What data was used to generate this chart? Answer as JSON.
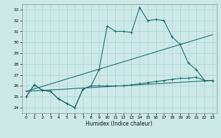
{
  "xlabel": "Humidex (Indice chaleur)",
  "xlim": [
    -0.5,
    23.5
  ],
  "ylim": [
    23.5,
    33.5
  ],
  "yticks": [
    24,
    25,
    26,
    27,
    28,
    29,
    30,
    31,
    32,
    33
  ],
  "xticks": [
    0,
    1,
    2,
    3,
    4,
    5,
    6,
    7,
    8,
    9,
    10,
    11,
    12,
    13,
    14,
    15,
    16,
    17,
    18,
    19,
    20,
    21,
    22,
    23
  ],
  "bg_color": "#cce9e8",
  "grid_color": "#aad4d3",
  "line_color": "#1a6b6b",
  "series1_x": [
    0,
    1,
    2,
    3,
    4,
    5,
    6,
    7,
    8,
    9,
    10,
    11,
    12,
    13,
    14,
    15,
    16,
    17,
    18,
    19,
    20,
    21,
    22,
    23
  ],
  "series1_y": [
    25.0,
    26.1,
    25.6,
    25.5,
    24.8,
    24.4,
    24.0,
    25.7,
    26.0,
    27.5,
    31.5,
    31.0,
    31.0,
    30.9,
    33.2,
    32.0,
    32.1,
    32.0,
    30.5,
    29.8,
    28.1,
    27.5,
    26.5,
    26.5
  ],
  "series2_x": [
    0,
    1,
    2,
    3,
    4,
    5,
    6,
    7,
    8,
    9,
    10,
    11,
    12,
    13,
    14,
    15,
    16,
    17,
    18,
    19,
    20,
    21,
    22,
    23
  ],
  "series2_y": [
    25.0,
    26.1,
    25.6,
    25.5,
    24.8,
    24.4,
    24.0,
    25.7,
    26.0,
    26.0,
    26.0,
    26.0,
    26.0,
    26.1,
    26.2,
    26.3,
    26.4,
    26.5,
    26.6,
    26.7,
    26.7,
    26.8,
    26.5,
    26.5
  ],
  "series3_x": [
    0,
    23
  ],
  "series3_y": [
    25.5,
    30.7
  ],
  "series4_x": [
    0,
    23
  ],
  "series4_y": [
    25.5,
    26.5
  ]
}
